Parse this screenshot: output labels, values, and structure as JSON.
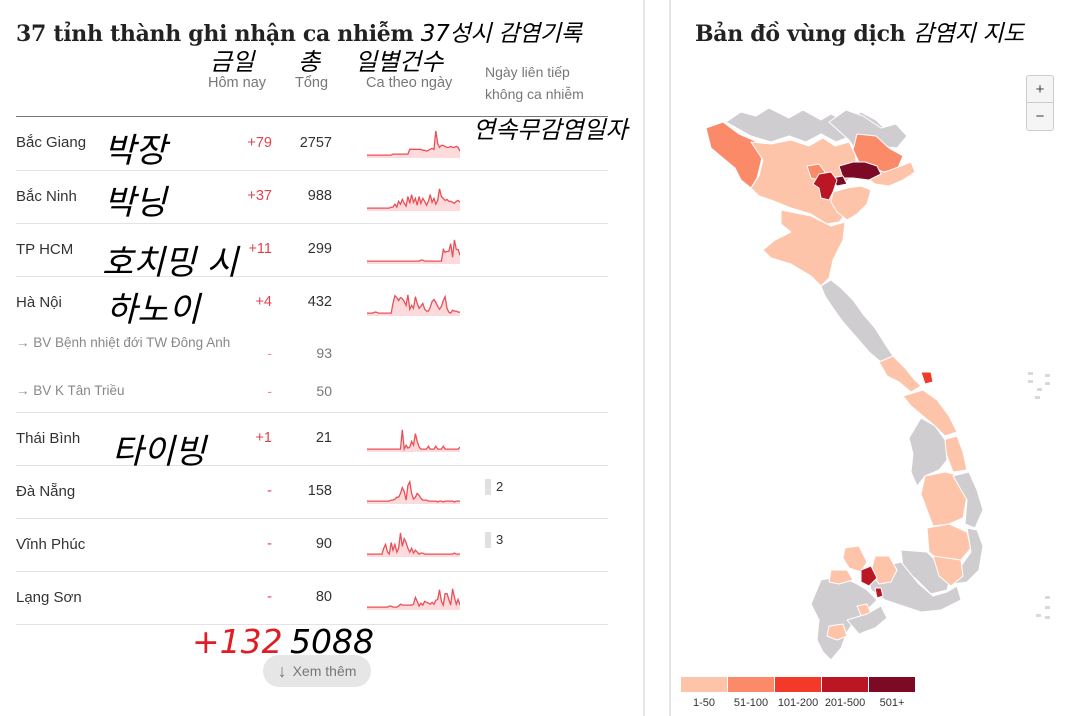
{
  "table": {
    "title": "37 tỉnh thành ghi nhận ca nhiễm",
    "title_annotation_kr": "37성시 감염기록",
    "columns": {
      "today": "Hôm nay",
      "total": "Tổng",
      "daily": "Ca theo ngày",
      "streak_line1": "Ngày liên tiếp",
      "streak_line2": "không ca nhiễm"
    },
    "column_annotations_kr": {
      "today": "금일",
      "total": "총",
      "daily": "일별건수",
      "streak": "연속무감염일자"
    },
    "rows": [
      {
        "name": "Bắc Giang",
        "kr": "박장",
        "today": "+79",
        "total": "2757",
        "streak": "",
        "spark": [
          2,
          2,
          2,
          2,
          2,
          2,
          2,
          2,
          2,
          2,
          2,
          2,
          2,
          2,
          3,
          3,
          3,
          3,
          3,
          3,
          3,
          3,
          3,
          8,
          8,
          8,
          8,
          8,
          8,
          8,
          7,
          7,
          6,
          7,
          8,
          9,
          8,
          27,
          14,
          10,
          12,
          12,
          11,
          10,
          10,
          11,
          10,
          10,
          11,
          10,
          6
        ]
      },
      {
        "name": "Bắc Ninh",
        "kr": "박닝",
        "today": "+37",
        "total": "988",
        "streak": "",
        "spark": [
          2,
          2,
          2,
          2,
          2,
          2,
          2,
          2,
          2,
          2,
          2,
          2,
          2,
          3,
          3,
          6,
          3,
          9,
          6,
          11,
          7,
          4,
          14,
          7,
          16,
          8,
          12,
          5,
          14,
          7,
          12,
          9,
          5,
          9,
          16,
          8,
          12,
          6,
          10,
          22,
          14,
          12,
          10,
          11,
          9,
          9,
          8,
          7,
          9,
          10,
          8
        ]
      },
      {
        "name": "TP HCM",
        "kr": "호치밍 시",
        "today": "+11",
        "total": "299",
        "streak": "",
        "spark": [
          2,
          2,
          2,
          2,
          2,
          2,
          2,
          2,
          2,
          2,
          2,
          2,
          2,
          2,
          2,
          2,
          2,
          2,
          2,
          2,
          2,
          2,
          2,
          2,
          2,
          2,
          2,
          2,
          2,
          3,
          3,
          2,
          2,
          2,
          2,
          2,
          2,
          2,
          2,
          2,
          2,
          14,
          11,
          12,
          12,
          20,
          6,
          24,
          14,
          14,
          8
        ]
      },
      {
        "name": "Hà Nội",
        "kr": "하노이",
        "today": "+4",
        "total": "432",
        "streak": "",
        "spark": [
          2,
          2,
          2,
          2,
          3,
          3,
          2,
          2,
          2,
          2,
          2,
          2,
          2,
          2,
          12,
          20,
          18,
          15,
          18,
          17,
          14,
          10,
          21,
          6,
          10,
          7,
          19,
          12,
          7,
          9,
          12,
          6,
          4,
          4,
          8,
          14,
          16,
          13,
          9,
          6,
          9,
          15,
          19,
          7,
          3,
          2,
          5,
          4,
          4,
          3,
          3
        ]
      }
    ],
    "subrows": [
      {
        "name": "→ BV Bệnh nhiệt đới TW Đông Anh",
        "today": "-",
        "total": "93"
      },
      {
        "name": "→ BV K Tân Triều",
        "today": "-",
        "total": "50"
      }
    ],
    "rows2": [
      {
        "name": "Thái Bình",
        "kr": "타이빙",
        "today": "+1",
        "total": "21",
        "streak": "",
        "spark": [
          2,
          2,
          2,
          2,
          2,
          2,
          2,
          2,
          2,
          2,
          2,
          2,
          2,
          2,
          2,
          2,
          2,
          2,
          2,
          22,
          2,
          6,
          3,
          4,
          10,
          6,
          18,
          10,
          4,
          2,
          2,
          2,
          2,
          5,
          2,
          2,
          2,
          5,
          2,
          2,
          2,
          5,
          2,
          2,
          2,
          2,
          2,
          2,
          2,
          2,
          4
        ]
      },
      {
        "name": "Đà Nẵng",
        "kr": "",
        "today": "-",
        "total": "158",
        "streak": "2",
        "spark": [
          2,
          2,
          2,
          2,
          2,
          2,
          2,
          2,
          2,
          2,
          2,
          2,
          2,
          3,
          3,
          4,
          6,
          6,
          10,
          16,
          12,
          3,
          18,
          22,
          10,
          4,
          6,
          10,
          8,
          5,
          3,
          3,
          3,
          2,
          2,
          2,
          2,
          2,
          1,
          2,
          2,
          1,
          2,
          2,
          2,
          2,
          2,
          1,
          2,
          2,
          2
        ]
      },
      {
        "name": "Vĩnh Phúc",
        "kr": "",
        "today": "-",
        "total": "90",
        "streak": "3",
        "spark": [
          2,
          2,
          2,
          2,
          2,
          2,
          2,
          2,
          2,
          8,
          12,
          4,
          2,
          14,
          6,
          12,
          4,
          8,
          24,
          10,
          18,
          14,
          8,
          4,
          8,
          3,
          6,
          4,
          2,
          3,
          3,
          2,
          2,
          2,
          2,
          2,
          2,
          2,
          2,
          2,
          2,
          2,
          2,
          2,
          2,
          2,
          2,
          3,
          2,
          2,
          2
        ]
      },
      {
        "name": "Lạng Sơn",
        "kr": "",
        "today": "-",
        "total": "80",
        "streak": "",
        "spark": [
          2,
          2,
          2,
          2,
          2,
          2,
          2,
          2,
          2,
          2,
          2,
          2,
          3,
          3,
          2,
          2,
          2,
          3,
          5,
          4,
          4,
          4,
          4,
          4,
          4,
          5,
          12,
          8,
          3,
          6,
          4,
          8,
          7,
          6,
          5,
          7,
          5,
          9,
          10,
          20,
          8,
          4,
          16,
          16,
          10,
          4,
          21,
          12,
          5,
          10,
          4
        ]
      }
    ],
    "summary": {
      "today": "+132",
      "total": "5088"
    },
    "more_button": "Xem thêm",
    "more_icon": "arrow-down-icon"
  },
  "map": {
    "title": "Bản đồ vùng dịch",
    "title_annotation_kr": "감염지 지도",
    "zoom_in": "+",
    "zoom_out": "−",
    "colors": {
      "no_data": "#cfcdd0",
      "c1": "#fdc4a9",
      "c2": "#fb8a68",
      "c3": "#f2392a",
      "c4": "#bb1624",
      "c5": "#7d0a24"
    },
    "legend": [
      {
        "label": "1-50",
        "color": "#fdc4a9"
      },
      {
        "label": "51-100",
        "color": "#fb8a68"
      },
      {
        "label": "101-200",
        "color": "#f2392a"
      },
      {
        "label": "201-500",
        "color": "#bb1624"
      },
      {
        "label": "501+",
        "color": "#7d0a24"
      }
    ]
  },
  "theme": {
    "accent_red": "#e2424d",
    "spark_line": "#ea4f57",
    "spark_fill": "#fddadc"
  }
}
